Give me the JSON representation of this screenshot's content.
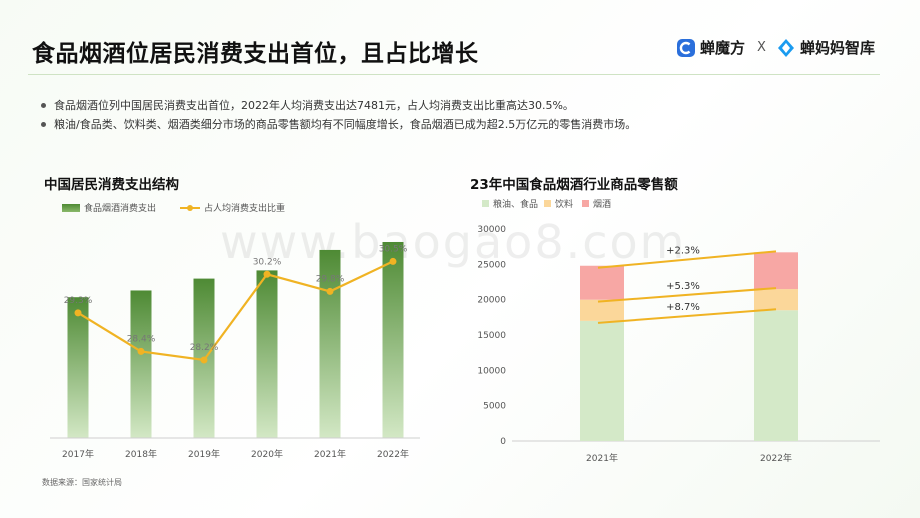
{
  "header": {
    "title": "食品烟酒位居民消费支出首位，且占比增长",
    "logo_primary": "蝉魔方",
    "logo_separator": "X",
    "logo_secondary": "蝉妈妈智库"
  },
  "bullets": [
    "食品烟酒位列中国居民消费支出首位，2022年人均消费支出达7481元，占人均消费支出比重高达30.5%。",
    "粮油/食品类、饮料类、烟酒类细分市场的商品零售额均有不同幅度增长，食品烟酒已成为超2.5万亿元的零售消费市场。"
  ],
  "watermark": "www.baogao8.com",
  "source": "数据来源：国家统计局",
  "colors": {
    "bar_dark": "#4e8a34",
    "bar_light": "#d3e8c5",
    "line": "#f0b323",
    "grain": "#d4e9c8",
    "beverage": "#fbd79a",
    "tobacco": "#f7a7a4",
    "growth_line": "#f0b323"
  },
  "chart_data": [
    {
      "type": "bar+line",
      "title": "中国居民消费支出结构",
      "categories": [
        "2017年",
        "2018年",
        "2019年",
        "2020年",
        "2021年",
        "2022年"
      ],
      "series": [
        {
          "name": "食品烟酒消费支出",
          "type": "bar",
          "values": [
            5374,
            5631,
            6084,
            6397,
            7178,
            7481
          ]
        },
        {
          "name": "占人均消费支出比重",
          "type": "line",
          "values": [
            29.3,
            28.4,
            28.2,
            30.2,
            29.8,
            30.5
          ],
          "labels": [
            "29.3%",
            "28.4%",
            "28.2%",
            "30.2%",
            "29.8%",
            "30.5%"
          ]
        }
      ],
      "legend": "top-left",
      "grid": false
    },
    {
      "type": "stacked-bar",
      "title": "23年中国食品烟酒行业商品零售额",
      "categories": [
        "2021年",
        "2022年"
      ],
      "series": [
        {
          "name": "粮油、食品",
          "values": [
            17000,
            18500
          ]
        },
        {
          "name": "饮料",
          "values": [
            3000,
            3000
          ]
        },
        {
          "name": "烟酒",
          "values": [
            4800,
            5200
          ]
        }
      ],
      "yticks": [
        "0",
        "5000",
        "10000",
        "15000",
        "20000",
        "25000",
        "30000"
      ],
      "ylim": [
        0,
        30000
      ],
      "annotations": [
        "+2.3%",
        "+5.3%",
        "+8.7%"
      ],
      "legend": "top-left",
      "grid": false
    }
  ]
}
